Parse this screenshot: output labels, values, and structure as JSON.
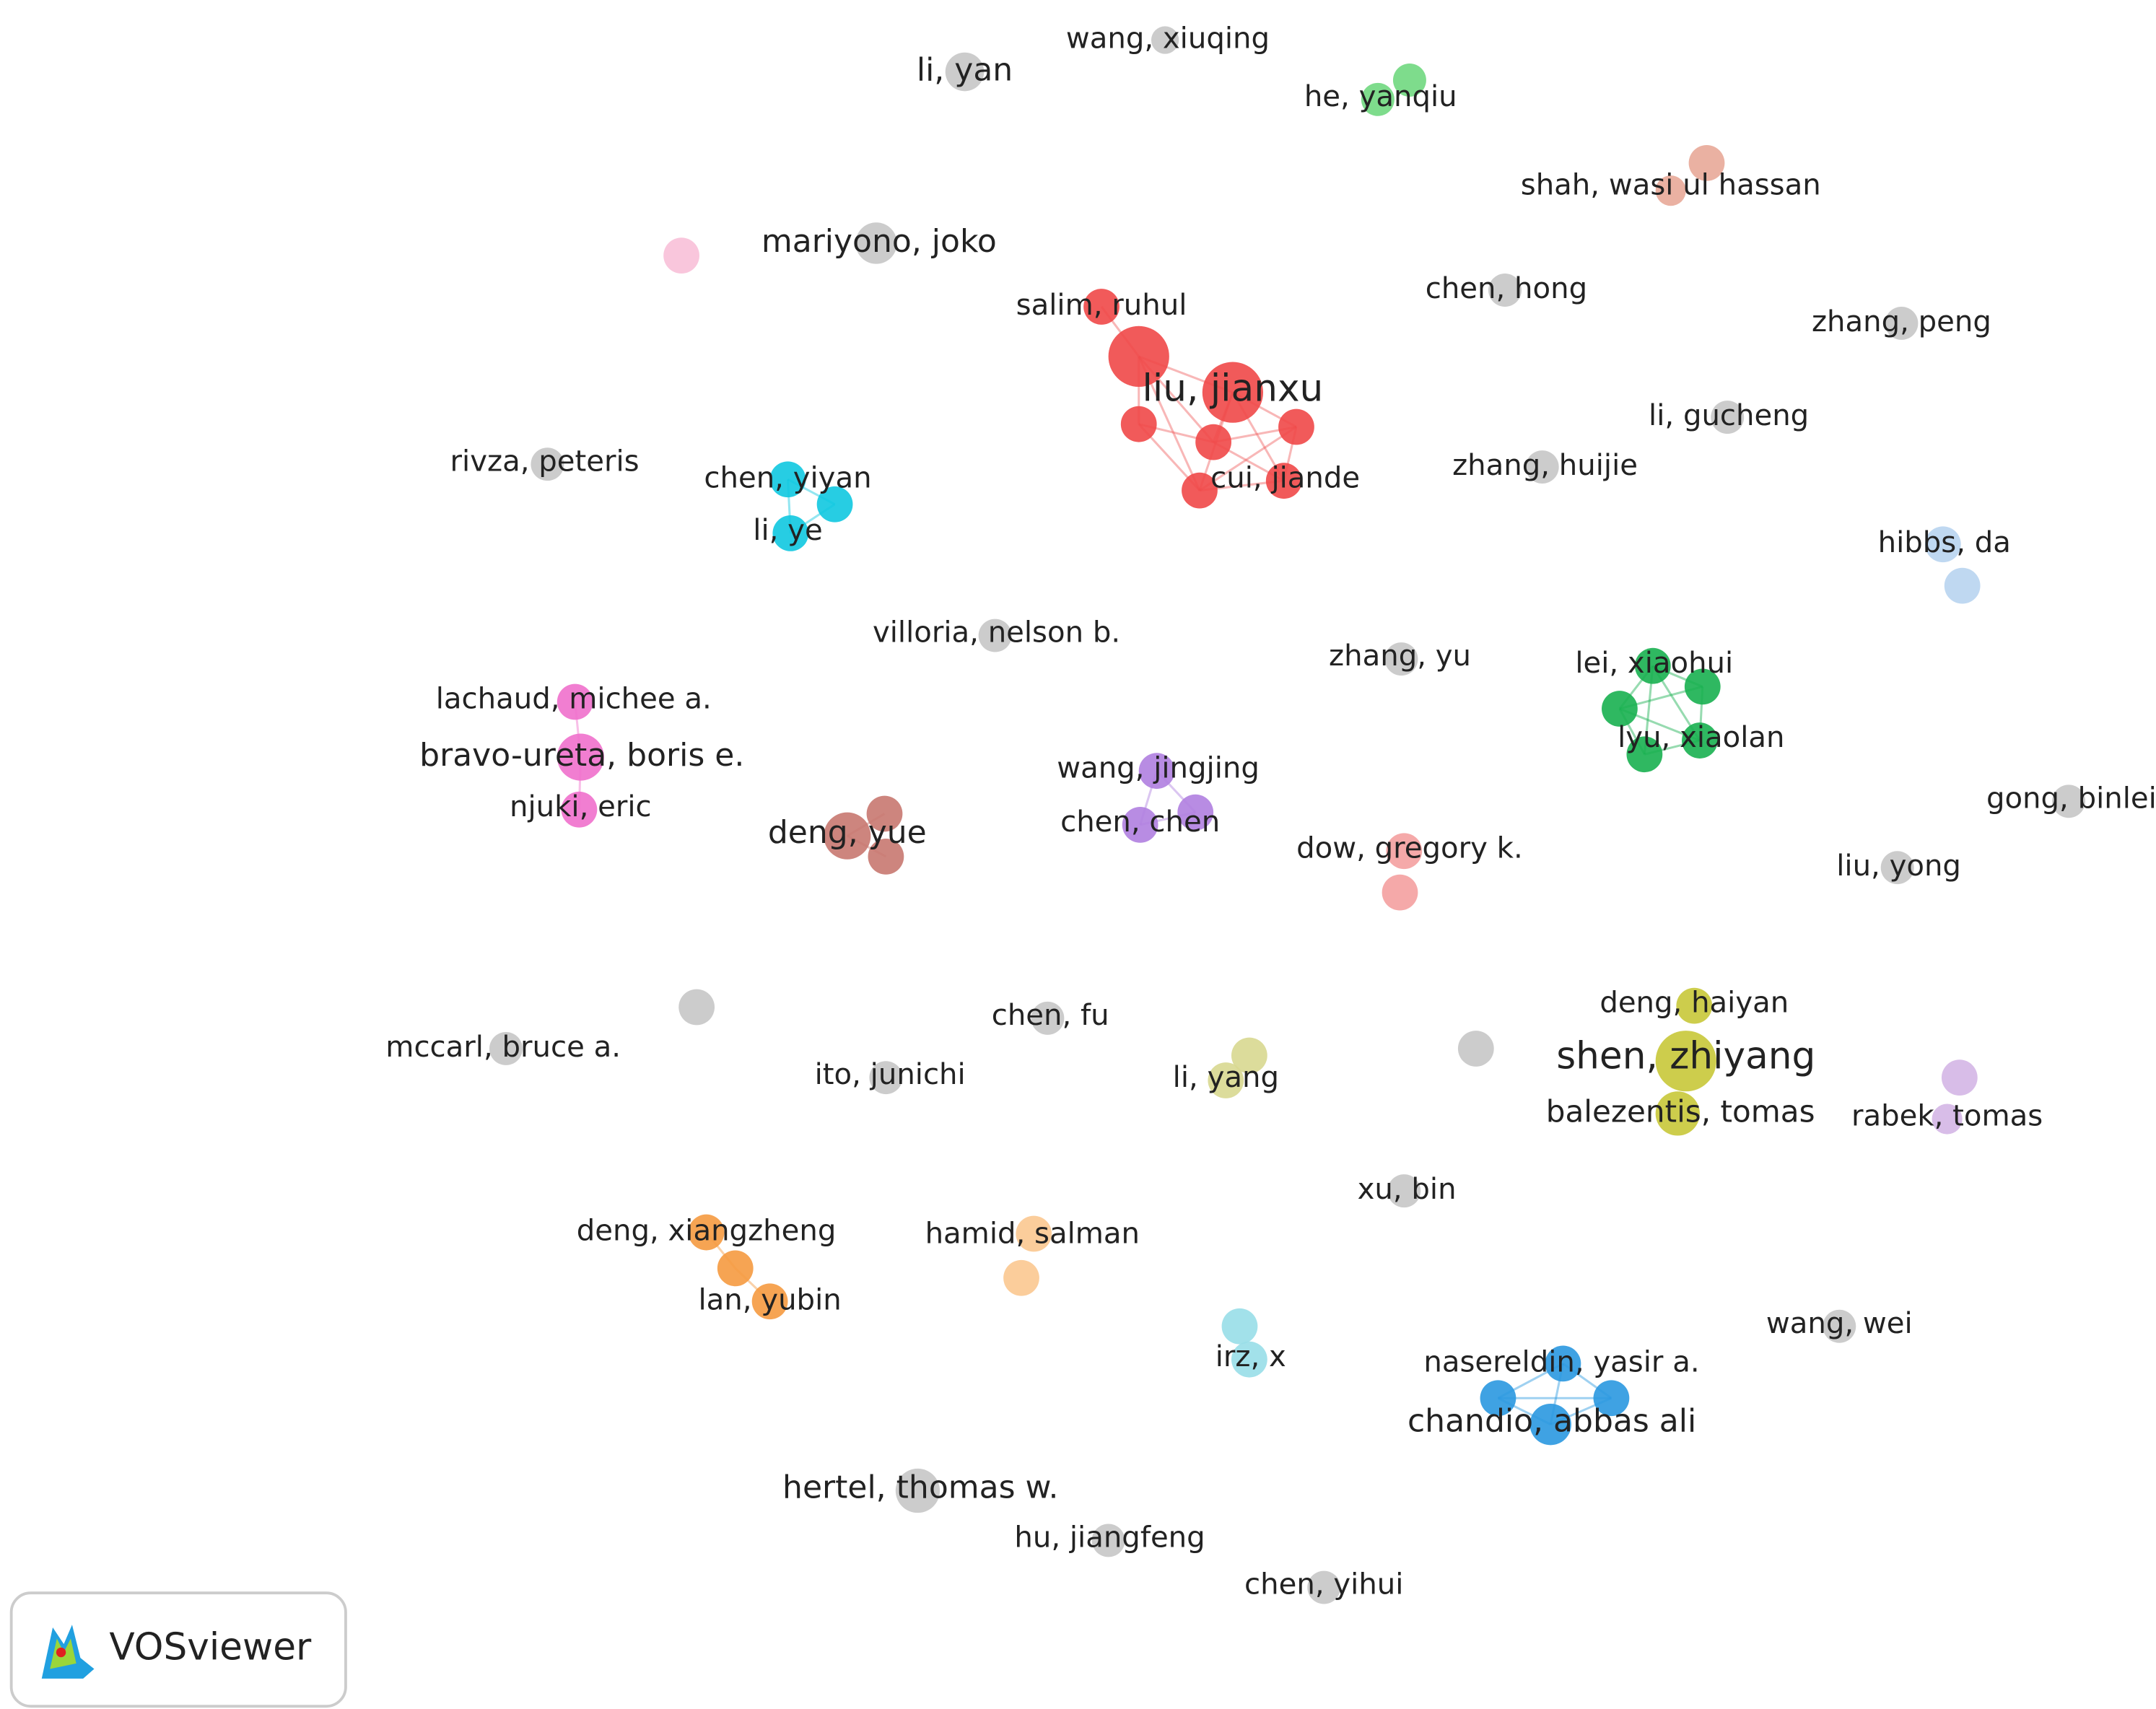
{
  "nodes": [
    {
      "label": "wang, xiuqing"
    },
    {
      "label": "li, yan"
    },
    {
      "label": "he, yanqiu"
    },
    {
      "label": "shah, wasi ul hassan"
    },
    {
      "label": "mariyono, joko"
    },
    {
      "label": "salim, ruhul"
    },
    {
      "label": "liu, jianxu"
    },
    {
      "label": "cui, jiande"
    },
    {
      "label": "chen, hong"
    },
    {
      "label": "zhang, peng"
    },
    {
      "label": "li, gucheng"
    },
    {
      "label": "zhang, huijie"
    },
    {
      "label": "rivza, peteris"
    },
    {
      "label": "chen, yiyan"
    },
    {
      "label": "li, ye"
    },
    {
      "label": "hibbs, da"
    },
    {
      "label": "villoria, nelson b."
    },
    {
      "label": "zhang, yu"
    },
    {
      "label": "lei, xiaohui"
    },
    {
      "label": "lyu, xiaolan"
    },
    {
      "label": "lachaud, michee a."
    },
    {
      "label": "bravo-ureta, boris e."
    },
    {
      "label": "njuki, eric"
    },
    {
      "label": "wang, jingjing"
    },
    {
      "label": "chen, chen"
    },
    {
      "label": "deng, yue"
    },
    {
      "label": "dow, gregory k."
    },
    {
      "label": "gong, binlei"
    },
    {
      "label": "liu, yong"
    },
    {
      "label": "deng, haiyan"
    },
    {
      "label": "shen, zhiyang"
    },
    {
      "label": "balezentis, tomas"
    },
    {
      "label": "chen, fu"
    },
    {
      "label": "mccarl, bruce a."
    },
    {
      "label": "ito, junichi"
    },
    {
      "label": "li, yang"
    },
    {
      "label": "rabek, tomas"
    },
    {
      "label": "xu, bin"
    },
    {
      "label": "deng, xiangzheng"
    },
    {
      "label": "lan, yubin"
    },
    {
      "label": "hamid, salman"
    },
    {
      "label": "irz, x"
    },
    {
      "label": "wang, wei"
    },
    {
      "label": "nasereldin, yasir a."
    },
    {
      "label": "chandio, abbas ali"
    },
    {
      "label": "hertel, thomas w."
    },
    {
      "label": "hu, jiangfeng"
    },
    {
      "label": "chen, yihui"
    }
  ],
  "logo": "VOSviewer"
}
